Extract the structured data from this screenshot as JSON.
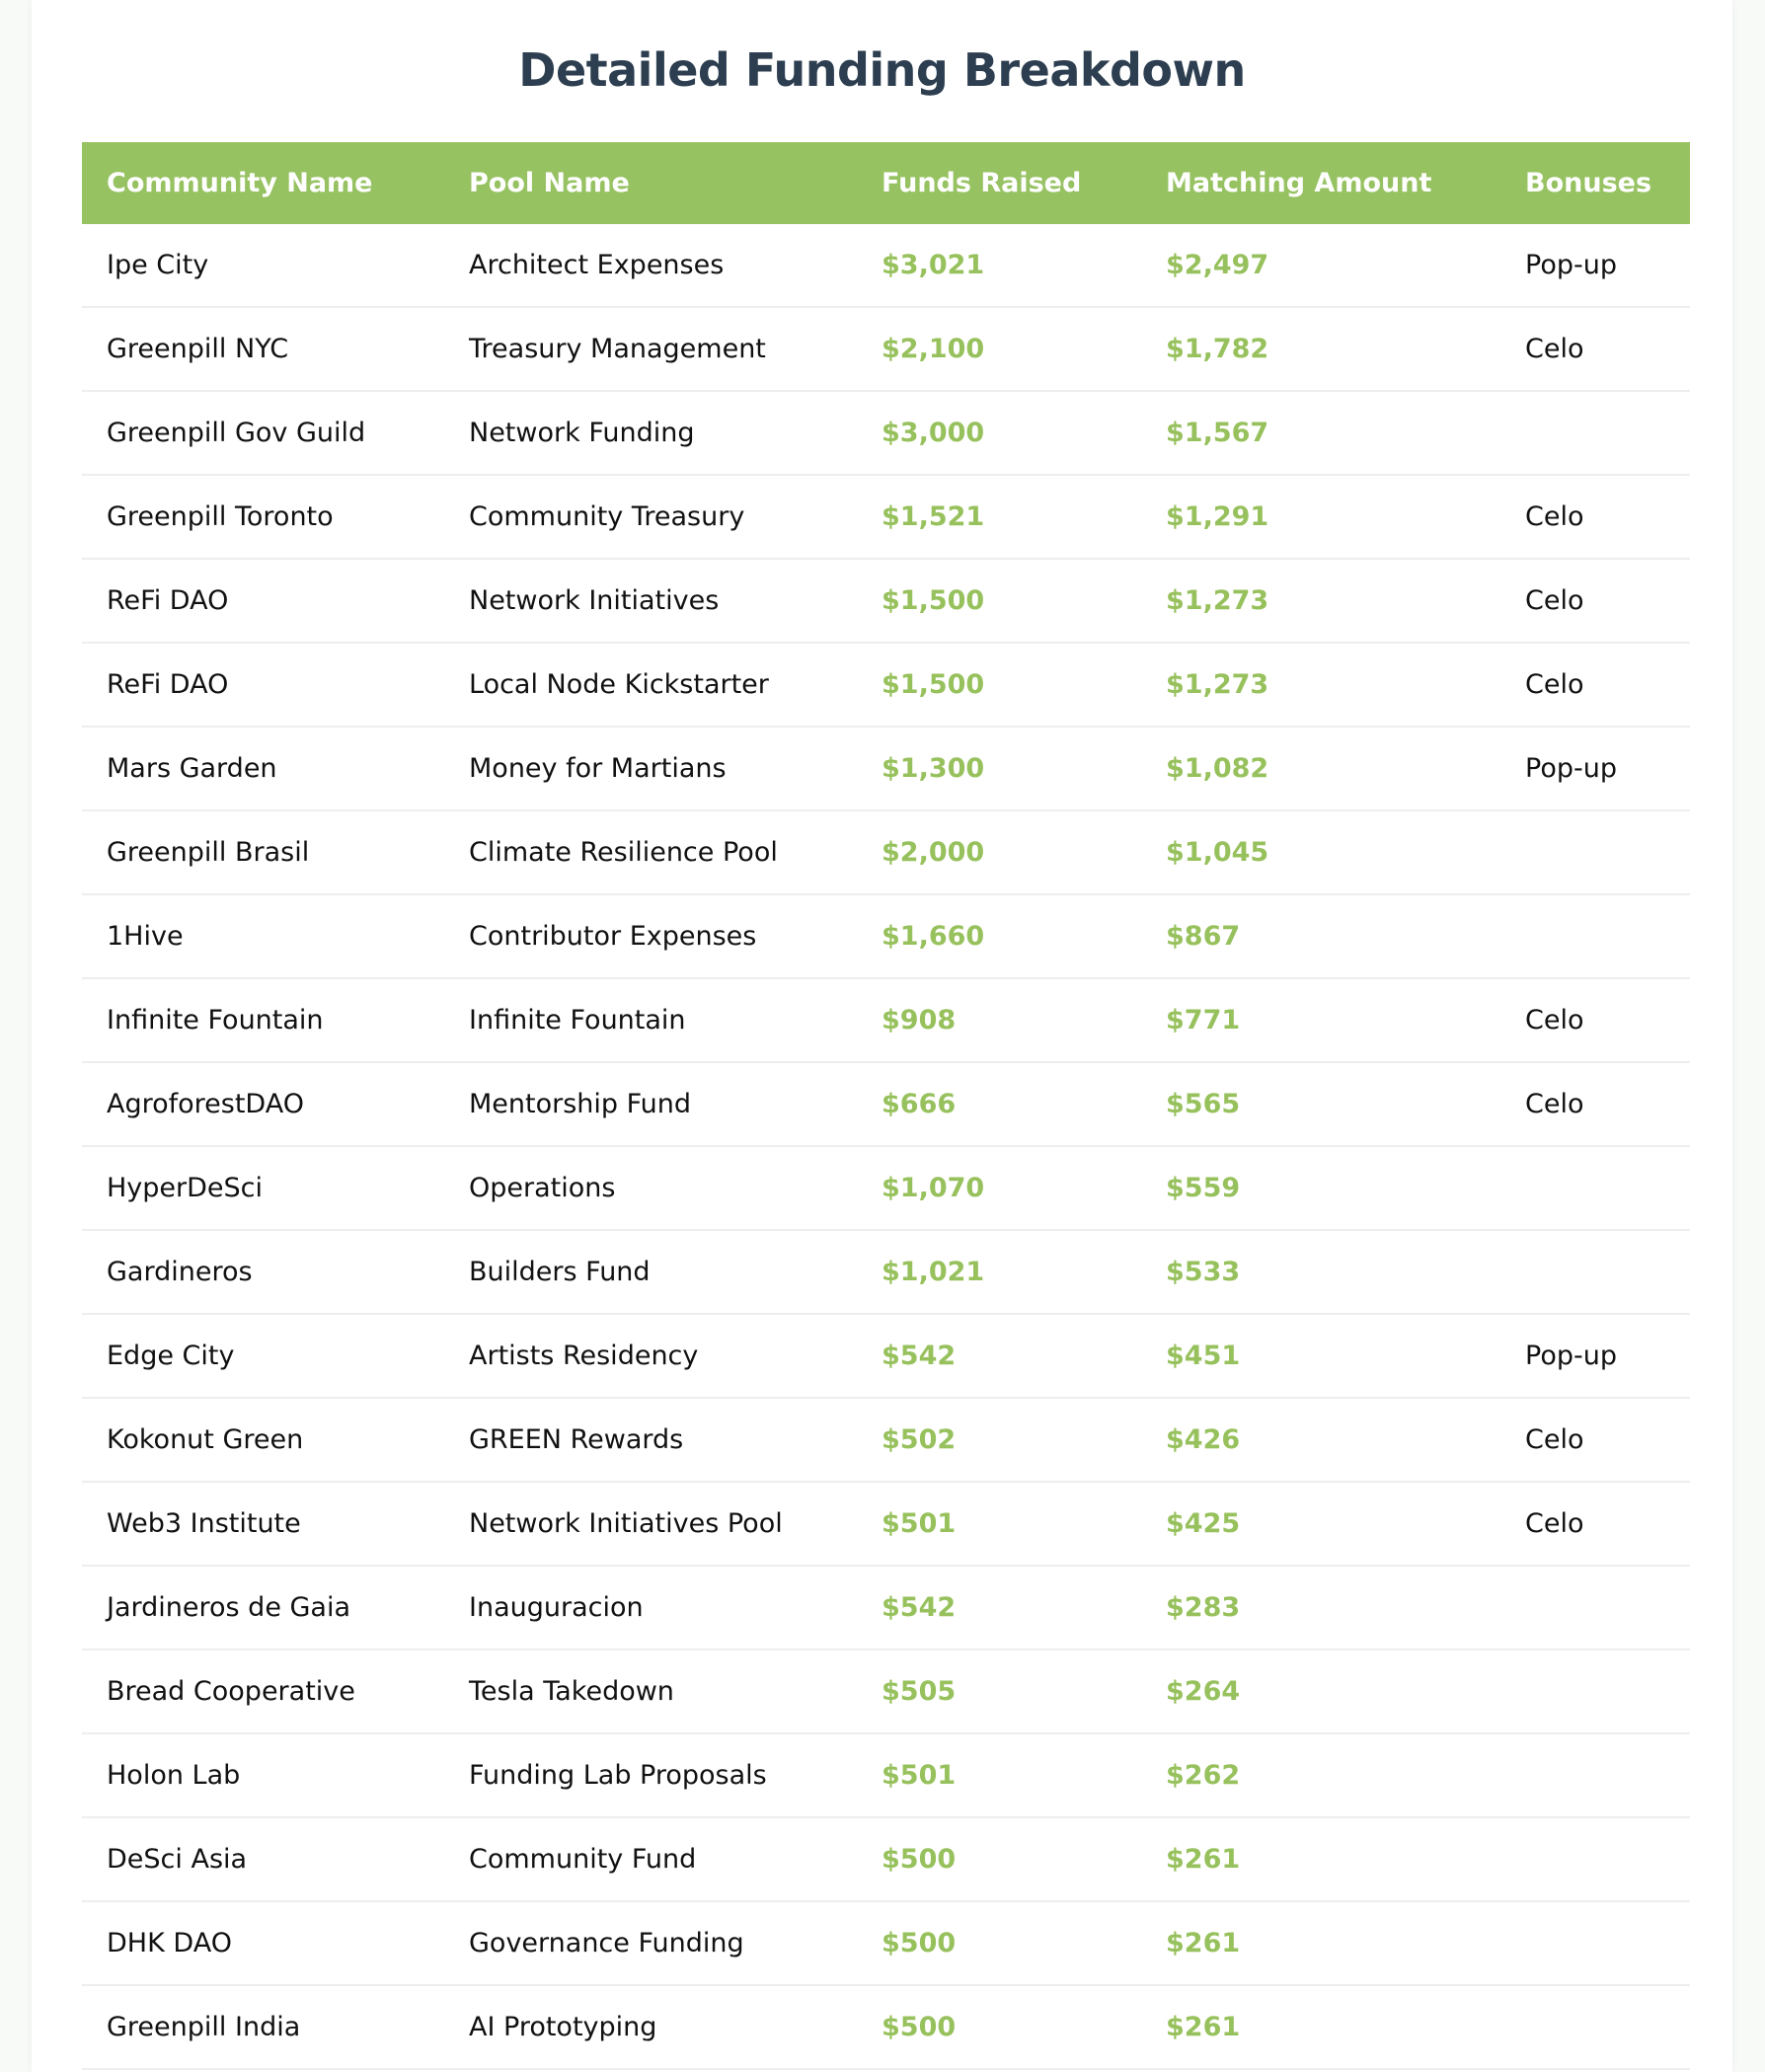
{
  "title": "Detailed Funding Breakdown",
  "colors": {
    "header_bg": "#97c262",
    "money": "#97c15c",
    "title": "#2c3e50"
  },
  "columns": [
    "Community Name",
    "Pool Name",
    "Funds Raised",
    "Matching Amount",
    "Bonuses"
  ],
  "rows": [
    [
      "Ipe City",
      "Architect Expenses",
      "$3,021",
      "$2,497",
      "Pop-up"
    ],
    [
      "Greenpill NYC",
      "Treasury Management",
      "$2,100",
      "$1,782",
      "Celo"
    ],
    [
      "Greenpill Gov Guild",
      "Network Funding",
      "$3,000",
      "$1,567",
      ""
    ],
    [
      "Greenpill Toronto",
      "Community Treasury",
      "$1,521",
      "$1,291",
      "Celo"
    ],
    [
      "ReFi DAO",
      "Network Initiatives",
      "$1,500",
      "$1,273",
      "Celo"
    ],
    [
      "ReFi DAO",
      "Local Node Kickstarter",
      "$1,500",
      "$1,273",
      "Celo"
    ],
    [
      "Mars Garden",
      "Money for Martians",
      "$1,300",
      "$1,082",
      "Pop-up"
    ],
    [
      "Greenpill Brasil",
      "Climate Resilience Pool",
      "$2,000",
      "$1,045",
      ""
    ],
    [
      "1Hive",
      "Contributor Expenses",
      "$1,660",
      "$867",
      ""
    ],
    [
      "Infinite Fountain",
      "Infinite Fountain",
      "$908",
      "$771",
      "Celo"
    ],
    [
      "AgroforestDAO",
      "Mentorship Fund",
      "$666",
      "$565",
      "Celo"
    ],
    [
      "HyperDeSci",
      "Operations",
      "$1,070",
      "$559",
      ""
    ],
    [
      "Gardineros",
      "Builders Fund",
      "$1,021",
      "$533",
      ""
    ],
    [
      "Edge City",
      "Artists Residency",
      "$542",
      "$451",
      "Pop-up"
    ],
    [
      "Kokonut Green",
      "GREEN Rewards",
      "$502",
      "$426",
      "Celo"
    ],
    [
      "Web3 Institute",
      "Network Initiatives Pool",
      "$501",
      "$425",
      "Celo"
    ],
    [
      "Jardineros de Gaia",
      "Inauguracion",
      "$542",
      "$283",
      ""
    ],
    [
      "Bread Cooperative",
      "Tesla Takedown",
      "$505",
      "$264",
      ""
    ],
    [
      "Holon Lab",
      "Funding Lab Proposals",
      "$501",
      "$262",
      ""
    ],
    [
      "DeSci Asia",
      "Community Fund",
      "$500",
      "$261",
      ""
    ],
    [
      "DHK DAO",
      "Governance Funding",
      "$500",
      "$261",
      ""
    ],
    [
      "Greenpill India",
      "AI Prototyping",
      "$500",
      "$261",
      ""
    ]
  ]
}
